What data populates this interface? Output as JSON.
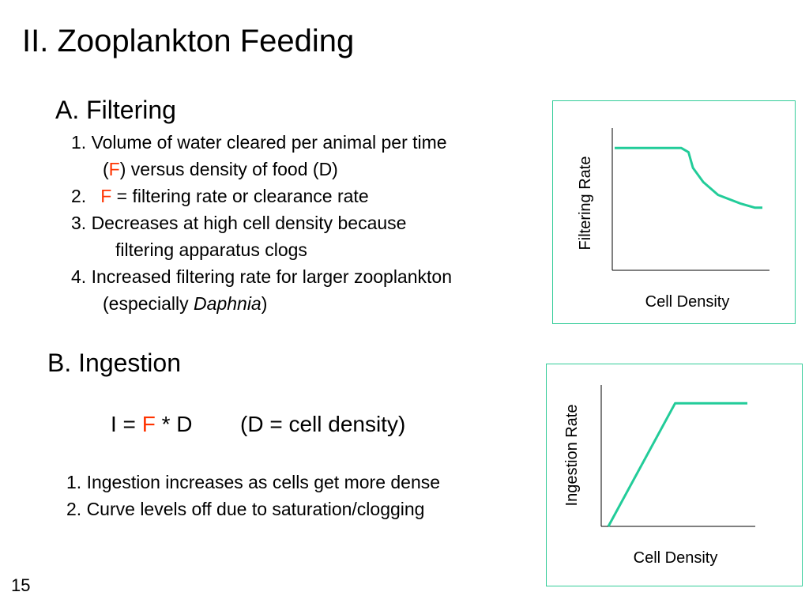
{
  "title": "II. Zooplankton Feeding",
  "filtering": {
    "heading": "A. Filtering",
    "item1_a": "1. Volume of water cleared per animal per time",
    "item1_b_open": "(",
    "item1_b_F": "F",
    "item1_b_rest": ") versus density of food (D)",
    "item2_num": "2.",
    "item2_F": "F",
    "item2_rest": " = filtering rate or clearance rate",
    "item3_a": "3.   Decreases at high cell density because",
    "item3_b": "filtering apparatus clogs",
    "item4_a": "4.  Increased filtering rate for larger zooplankton",
    "item4_b_pre": "(especially ",
    "item4_b_italic": "Daphnia",
    "item4_b_post": ")"
  },
  "ingestion": {
    "heading": "B. Ingestion",
    "formula_pre": "I = ",
    "formula_F": "F",
    "formula_post": " * D",
    "formula_note": "(D = cell density)",
    "item1": "1. Ingestion increases as cells get more dense",
    "item2": "2. Curve levels off due to saturation/clogging"
  },
  "chart_data": [
    {
      "type": "line",
      "xlabel": "Cell Density",
      "ylabel": "Filtering Rate",
      "x": [
        0,
        0.45,
        0.5,
        0.53,
        0.6,
        0.7,
        0.85,
        0.95,
        1.0
      ],
      "y": [
        0.86,
        0.86,
        0.83,
        0.72,
        0.62,
        0.53,
        0.47,
        0.44,
        0.44
      ],
      "line_color": "#22cc99"
    },
    {
      "type": "line",
      "xlabel": "Cell Density",
      "ylabel": "Ingestion Rate",
      "x": [
        0,
        0.48,
        1.0
      ],
      "y": [
        0.0,
        0.87,
        0.87
      ],
      "line_color": "#22cc99"
    }
  ],
  "slide_number": "15"
}
